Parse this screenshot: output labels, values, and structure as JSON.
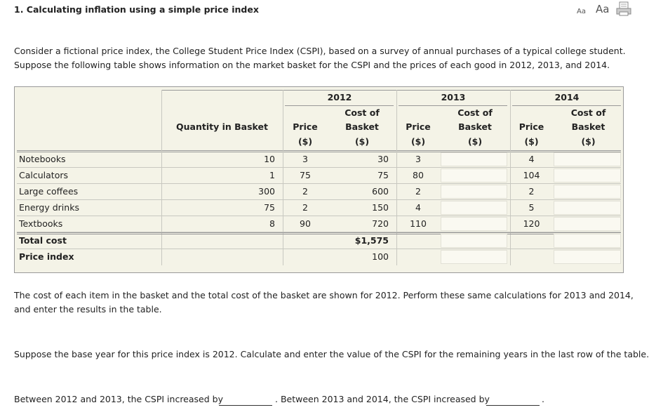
{
  "header": {
    "title": "1. Calculating inflation using a simple price index",
    "font_small": "Aa",
    "font_large": "Aa"
  },
  "intro": [
    "Consider a fictional price index, the College Student Price Index (CSPI), based on a survey of annual purchases of a typical college student.",
    "Suppose the following table shows information on the market basket for the CSPI and the prices of each good in 2012, 2013, and 2014."
  ],
  "table": {
    "years": [
      "2012",
      "2013",
      "2014"
    ],
    "quantity_header": "Quantity in Basket",
    "price_header": [
      "Price",
      "($)"
    ],
    "cost_header": [
      "Cost of",
      "Basket",
      "($)"
    ],
    "rows": [
      {
        "item": "Notebooks",
        "quantity": 10,
        "prices": [
          3,
          3,
          4
        ],
        "cost_2012": 30
      },
      {
        "item": "Calculators",
        "quantity": 1,
        "prices": [
          75,
          80,
          104
        ],
        "cost_2012": 75
      },
      {
        "item": "Large coffees",
        "quantity": 300,
        "prices": [
          2,
          2,
          2
        ],
        "cost_2012": 600
      },
      {
        "item": "Energy drinks",
        "quantity": 75,
        "prices": [
          2,
          4,
          5
        ],
        "cost_2012": 150
      },
      {
        "item": "Textbooks",
        "quantity": 8,
        "prices": [
          90,
          110,
          120
        ],
        "cost_2012": 720
      }
    ],
    "totals": [
      {
        "label": "Total cost",
        "value_2012": "$1,575"
      },
      {
        "label": "Price index",
        "value_2012": 100
      }
    ]
  },
  "instructions": [
    [
      "The cost of each item in the basket and the total cost of the basket are shown for 2012. Perform these same calculations for 2013 and 2014,",
      "and enter the results in the table."
    ],
    [
      "Suppose the base year for this price index is 2012. Calculate and enter the value of the CSPI for the remaining years in the last row of the table."
    ]
  ],
  "question": [
    "Between 2012 and 2013, the CSPI increased by",
    ". Between 2013 and 2014, the CSPI increased by",
    "."
  ]
}
